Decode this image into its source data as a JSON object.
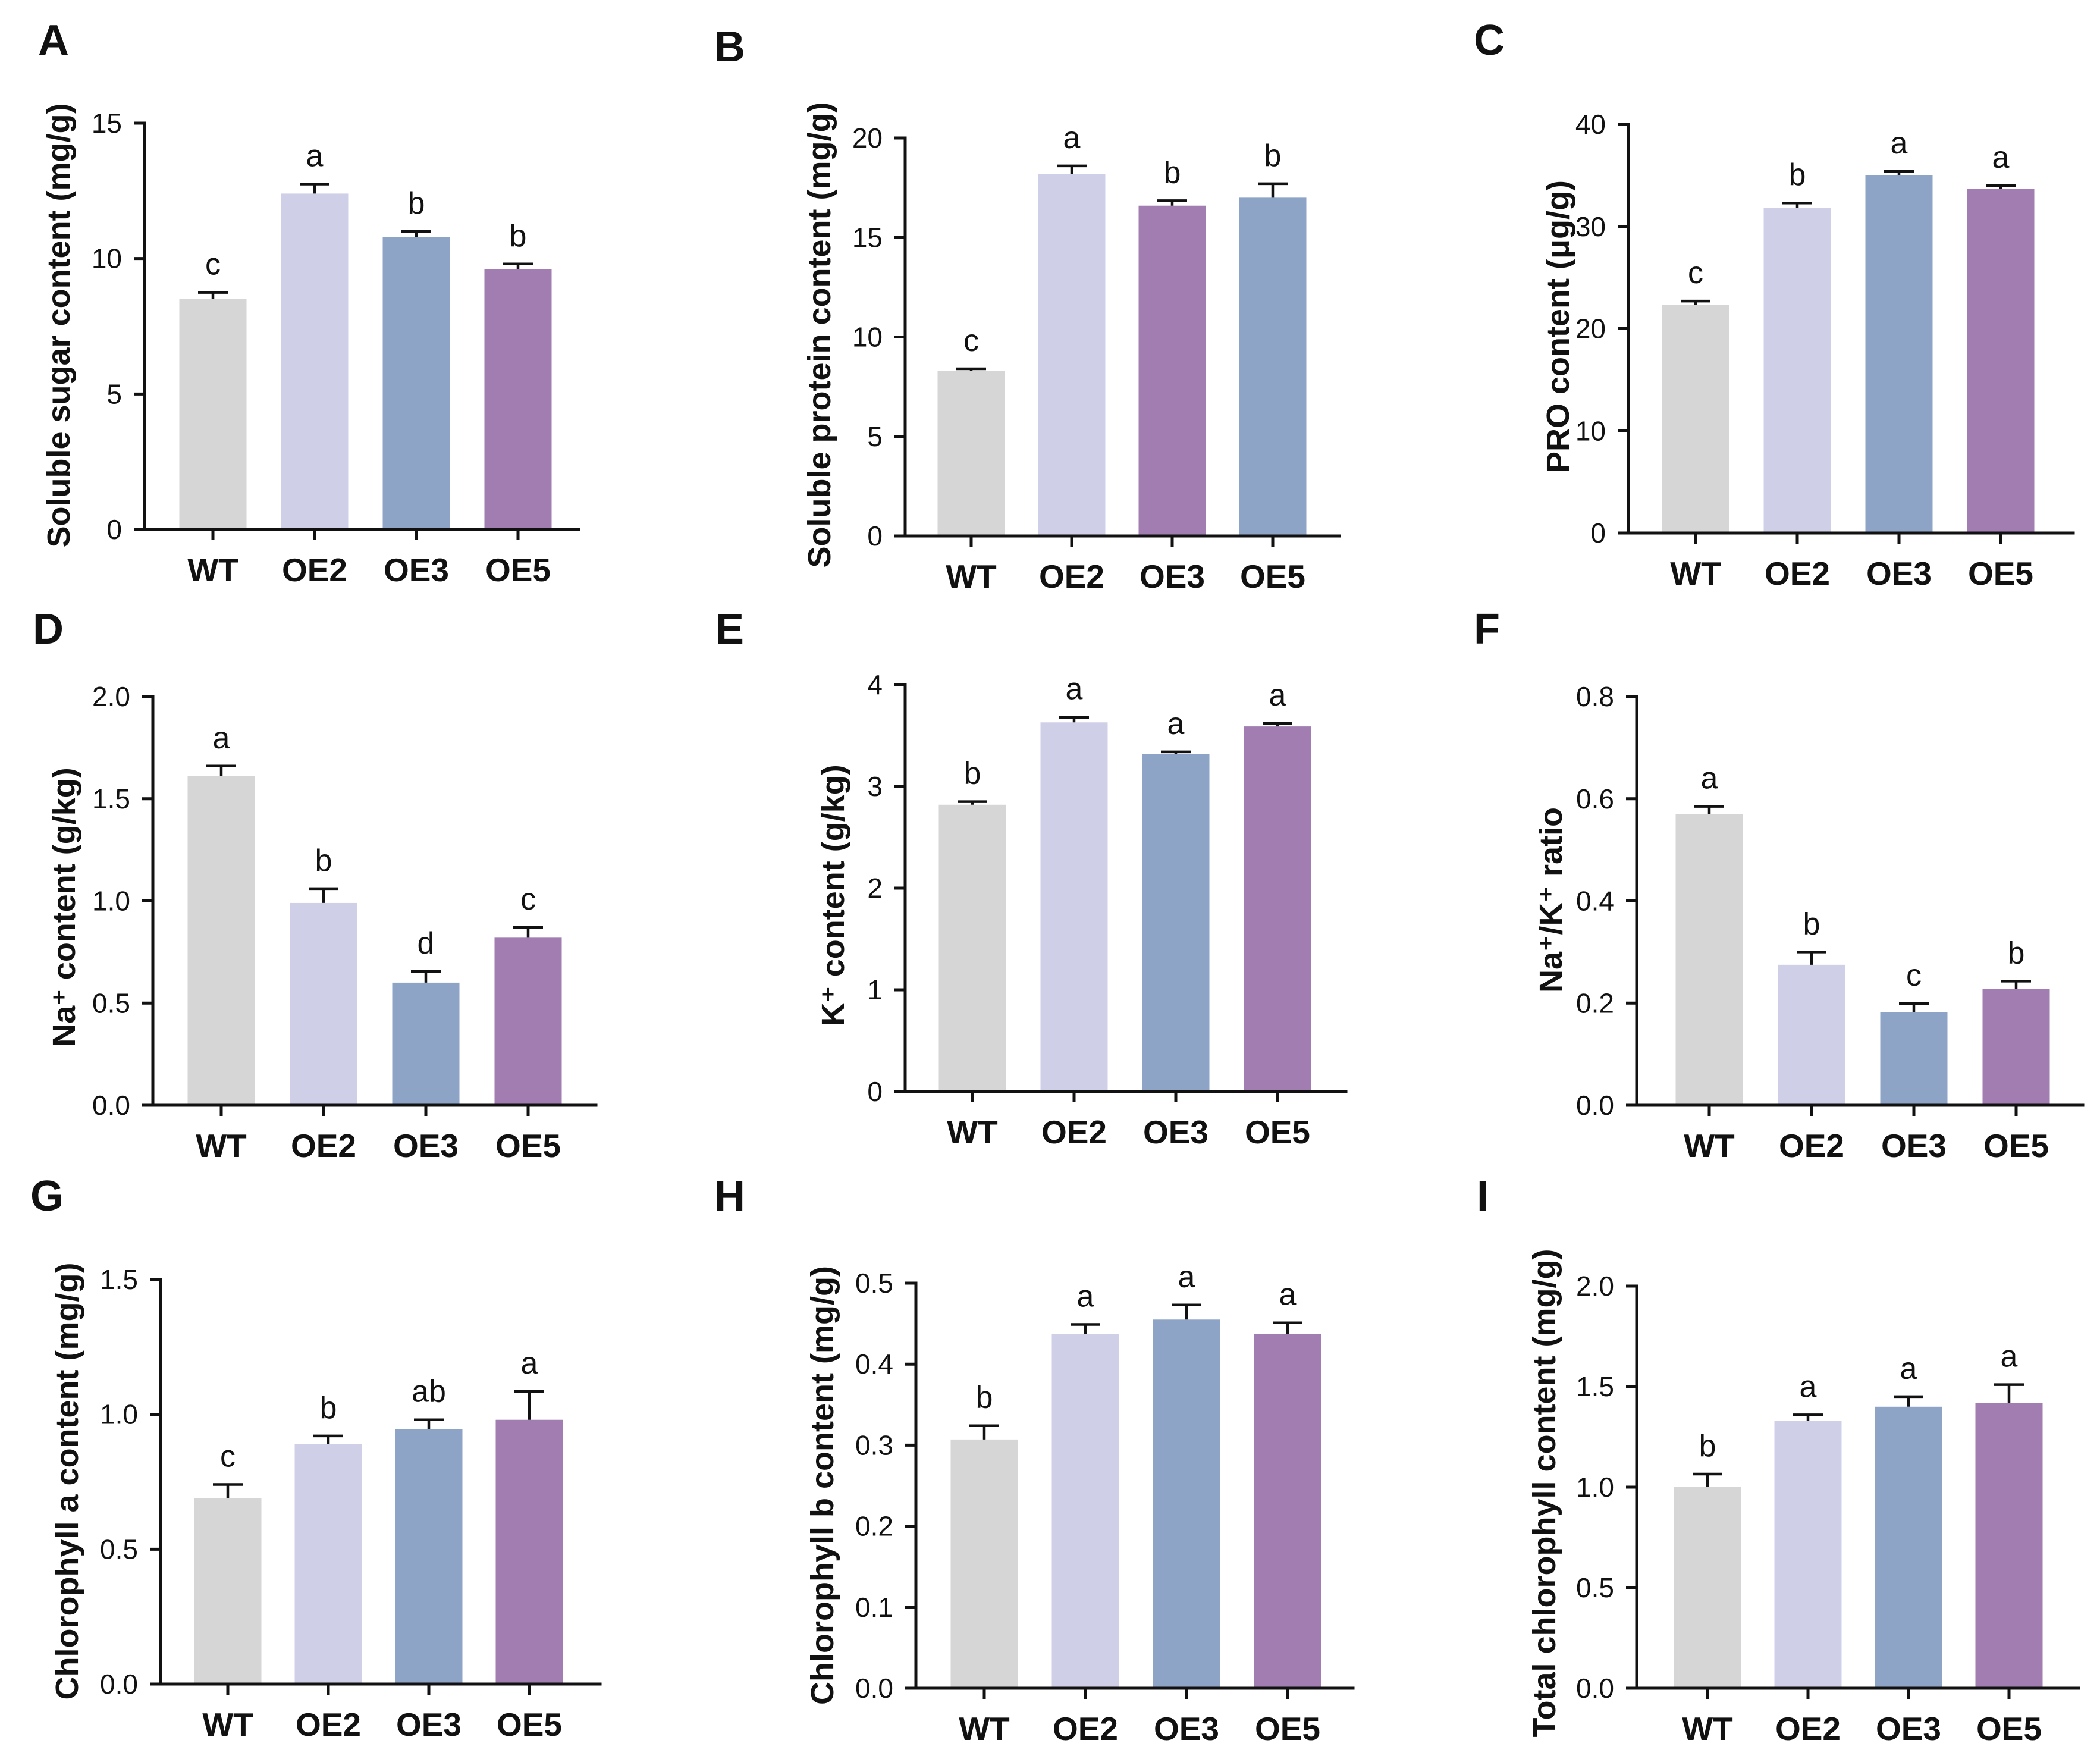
{
  "chart_data": [
    {
      "panel": "A",
      "type": "bar",
      "ylabel": "Soluble sugar content (mg/g)",
      "categories": [
        "WT",
        "OE2",
        "OE3",
        "OE5"
      ],
      "values": [
        8.5,
        12.4,
        10.8,
        9.6
      ],
      "errors": [
        0.25,
        0.35,
        0.2,
        0.2
      ],
      "significance": [
        "c",
        "a",
        "b",
        "b"
      ],
      "ylim": [
        0,
        15
      ],
      "yticks": [
        0,
        5,
        10,
        15
      ],
      "ytick_labels": [
        "0",
        "5",
        "10",
        "15"
      ],
      "bar_colors": [
        "#d6d6d6",
        "#cfd0e8",
        "#8da4c7",
        "#a17db2"
      ]
    },
    {
      "panel": "B",
      "type": "bar",
      "ylabel": "Soluble protein content (mg/g)",
      "categories": [
        "WT",
        "OE2",
        "OE3",
        "OE5"
      ],
      "values": [
        8.3,
        18.2,
        16.6,
        17.0
      ],
      "errors": [
        0.1,
        0.4,
        0.25,
        0.7
      ],
      "significance": [
        "c",
        "a",
        "b",
        "b"
      ],
      "ylim": [
        0,
        20
      ],
      "yticks": [
        0,
        5,
        10,
        15,
        20
      ],
      "ytick_labels": [
        "0",
        "5",
        "10",
        "15",
        "20"
      ],
      "bar_colors": [
        "#d6d6d6",
        "#cfd0e8",
        "#a17db2",
        "#8da4c7"
      ]
    },
    {
      "panel": "C",
      "type": "bar",
      "ylabel": "PRO content (μg/g)",
      "categories": [
        "WT",
        "OE2",
        "OE3",
        "OE5"
      ],
      "values": [
        22.3,
        31.8,
        35.0,
        33.7
      ],
      "errors": [
        0.4,
        0.5,
        0.4,
        0.3
      ],
      "significance": [
        "c",
        "b",
        "a",
        "a"
      ],
      "ylim": [
        0,
        40
      ],
      "yticks": [
        0,
        10,
        20,
        30,
        40
      ],
      "ytick_labels": [
        "0",
        "10",
        "20",
        "30",
        "40"
      ],
      "bar_colors": [
        "#d6d6d6",
        "#cfd0e8",
        "#8da4c7",
        "#a17db2"
      ]
    },
    {
      "panel": "D",
      "type": "bar",
      "ylabel": "Na⁺ content (g/kg)",
      "categories": [
        "WT",
        "OE2",
        "OE3",
        "OE5"
      ],
      "values": [
        1.61,
        0.99,
        0.6,
        0.82
      ],
      "errors": [
        0.05,
        0.07,
        0.055,
        0.05
      ],
      "significance": [
        "a",
        "b",
        "d",
        "c"
      ],
      "ylim": [
        0,
        2.0
      ],
      "yticks": [
        0,
        0.5,
        1.0,
        1.5,
        2.0
      ],
      "ytick_labels": [
        "0.0",
        "0.5",
        "1.0",
        "1.5",
        "2.0"
      ],
      "bar_colors": [
        "#d6d6d6",
        "#cfd0e8",
        "#8da4c7",
        "#a17db2"
      ]
    },
    {
      "panel": "E",
      "type": "bar",
      "ylabel": "K⁺ content (g/kg)",
      "categories": [
        "WT",
        "OE2",
        "OE3",
        "OE5"
      ],
      "values": [
        2.82,
        3.63,
        3.32,
        3.59
      ],
      "errors": [
        0.03,
        0.05,
        0.02,
        0.03
      ],
      "significance": [
        "b",
        "a",
        "a",
        "a"
      ],
      "ylim": [
        0,
        4
      ],
      "yticks": [
        0,
        1,
        2,
        3,
        4
      ],
      "ytick_labels": [
        "0",
        "1",
        "2",
        "3",
        "4"
      ],
      "bar_colors": [
        "#d6d6d6",
        "#cfd0e8",
        "#8da4c7",
        "#a17db2"
      ]
    },
    {
      "panel": "F",
      "type": "bar",
      "ylabel": "Na⁺/K⁺ ratio",
      "categories": [
        "WT",
        "OE2",
        "OE3",
        "OE5"
      ],
      "values": [
        0.57,
        0.275,
        0.182,
        0.228
      ],
      "errors": [
        0.015,
        0.025,
        0.017,
        0.015
      ],
      "significance": [
        "a",
        "b",
        "c",
        "b"
      ],
      "ylim": [
        0,
        0.8
      ],
      "yticks": [
        0,
        0.2,
        0.4,
        0.6,
        0.8
      ],
      "ytick_labels": [
        "0.0",
        "0.2",
        "0.4",
        "0.6",
        "0.8"
      ],
      "bar_colors": [
        "#d6d6d6",
        "#cfd0e8",
        "#8da4c7",
        "#a17db2"
      ]
    },
    {
      "panel": "G",
      "type": "bar",
      "ylabel": "Chlorophyll a content (mg/g)",
      "categories": [
        "WT",
        "OE2",
        "OE3",
        "OE5"
      ],
      "values": [
        0.69,
        0.89,
        0.945,
        0.98
      ],
      "errors": [
        0.05,
        0.03,
        0.035,
        0.105
      ],
      "significance": [
        "c",
        "b",
        "ab",
        "a"
      ],
      "ylim": [
        0,
        1.5
      ],
      "yticks": [
        0,
        0.5,
        1.0,
        1.5
      ],
      "ytick_labels": [
        "0.0",
        "0.5",
        "1.0",
        "1.5"
      ],
      "bar_colors": [
        "#d6d6d6",
        "#cfd0e8",
        "#8da4c7",
        "#a17db2"
      ]
    },
    {
      "panel": "H",
      "type": "bar",
      "ylabel": "Chlorophyll b content (mg/g)",
      "categories": [
        "WT",
        "OE2",
        "OE3",
        "OE5"
      ],
      "values": [
        0.307,
        0.437,
        0.455,
        0.437
      ],
      "errors": [
        0.017,
        0.012,
        0.018,
        0.014
      ],
      "significance": [
        "b",
        "a",
        "a",
        "a"
      ],
      "ylim": [
        0,
        0.5
      ],
      "yticks": [
        0,
        0.1,
        0.2,
        0.3,
        0.4,
        0.5
      ],
      "ytick_labels": [
        "0.0",
        "0.1",
        "0.2",
        "0.3",
        "0.4",
        "0.5"
      ],
      "bar_colors": [
        "#d6d6d6",
        "#cfd0e8",
        "#8da4c7",
        "#a17db2"
      ]
    },
    {
      "panel": "I",
      "type": "bar",
      "ylabel": "Total chlorophyll content (mg/g)",
      "categories": [
        "WT",
        "OE2",
        "OE3",
        "OE5"
      ],
      "values": [
        1.0,
        1.33,
        1.4,
        1.42
      ],
      "errors": [
        0.065,
        0.03,
        0.05,
        0.09
      ],
      "significance": [
        "b",
        "a",
        "a",
        "a"
      ],
      "ylim": [
        0,
        2.0
      ],
      "yticks": [
        0,
        0.5,
        1.0,
        1.5,
        2.0
      ],
      "ytick_labels": [
        "0.0",
        "0.5",
        "1.0",
        "1.5",
        "2.0"
      ],
      "bar_colors": [
        "#d6d6d6",
        "#cfd0e8",
        "#8da4c7",
        "#a17db2"
      ]
    }
  ]
}
